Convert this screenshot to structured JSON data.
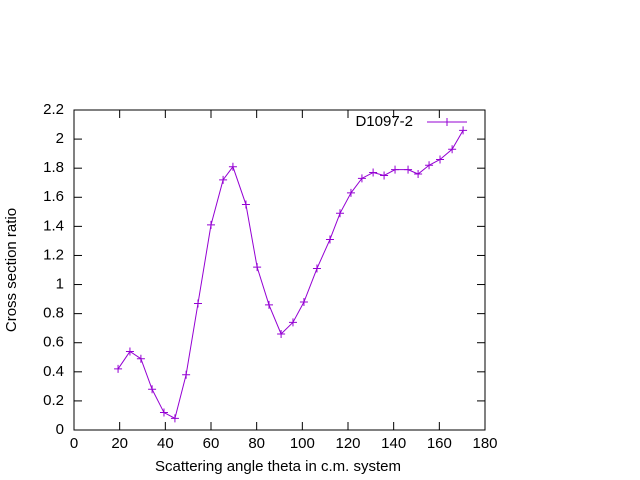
{
  "chart_data": {
    "type": "line",
    "xlabel": "Scattering angle theta in c.m. system",
    "ylabel": "Cross section ratio",
    "x": [
      19.3,
      24.5,
      29.3,
      34.2,
      39.4,
      44.2,
      49.1,
      54.3,
      60,
      65.3,
      69.6,
      75.3,
      80.2,
      85.4,
      90.7,
      95.9,
      100.7,
      106.4,
      112.1,
      116.5,
      121.3,
      126.1,
      131,
      135.8,
      140.6,
      146.3,
      150.7,
      155.5,
      160.3,
      165.6,
      170.4
    ],
    "series": [
      {
        "name": "D1097-2",
        "color": "#9400d3",
        "values": [
          0.42,
          0.54,
          0.49,
          0.28,
          0.12,
          0.08,
          0.38,
          0.87,
          1.41,
          1.72,
          1.81,
          1.55,
          1.12,
          0.86,
          0.66,
          0.74,
          0.88,
          1.11,
          1.31,
          1.49,
          1.63,
          1.73,
          1.77,
          1.75,
          1.79,
          1.79,
          1.76,
          1.82,
          1.86,
          1.93,
          2.06
        ]
      }
    ],
    "xlim": [
      0,
      180
    ],
    "ylim": [
      0,
      2.2
    ],
    "xticks": [
      0,
      20,
      40,
      60,
      80,
      100,
      120,
      140,
      160,
      180
    ],
    "yticks": [
      0,
      0.2,
      0.4,
      0.6,
      0.8,
      1,
      1.2,
      1.4,
      1.6,
      1.8,
      2,
      2.2
    ],
    "legend": "top-right",
    "grid": false
  }
}
